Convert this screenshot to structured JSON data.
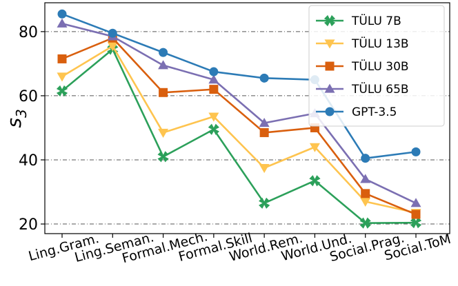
{
  "chart_data": {
    "type": "line",
    "title": "",
    "xlabel": "",
    "ylabel": "s3",
    "ylabel_main": "s",
    "ylabel_sub": "3",
    "ylim": [
      17,
      89
    ],
    "yticks": [
      20,
      40,
      60,
      80
    ],
    "grid": "horizontal dashed",
    "legend_position": "top-right",
    "categories": [
      "Ling.Gram.",
      "Ling.Seman.",
      "Formal.Mech.",
      "Formal.Skill",
      "World.Rem.",
      "World.Und.",
      "Social.Prag.",
      "Social.ToM"
    ],
    "series": [
      {
        "name": "TÜLU 7B",
        "color": "#2ca05a",
        "marker": "x",
        "values": [
          61.5,
          74.5,
          41.0,
          49.5,
          26.5,
          33.5,
          20.3,
          20.4
        ]
      },
      {
        "name": "TÜLU 13B",
        "color": "#fec44f",
        "marker": "triangle-down",
        "values": [
          66.0,
          75.5,
          48.5,
          53.5,
          37.5,
          44.0,
          27.0,
          23.5
        ]
      },
      {
        "name": "TÜLU 30B",
        "color": "#d95f0e",
        "marker": "square",
        "values": [
          71.5,
          78.0,
          61.0,
          62.0,
          48.5,
          50.0,
          29.5,
          23.0
        ]
      },
      {
        "name": "TÜLU 65B",
        "color": "#7b6fb2",
        "marker": "triangle-up",
        "values": [
          82.5,
          78.5,
          69.5,
          65.0,
          51.5,
          54.5,
          34.0,
          26.5
        ]
      },
      {
        "name": "GPT-3.5",
        "color": "#2c7bb6",
        "marker": "circle",
        "values": [
          85.5,
          79.5,
          73.5,
          67.5,
          65.5,
          65.0,
          40.5,
          42.5
        ]
      }
    ]
  }
}
